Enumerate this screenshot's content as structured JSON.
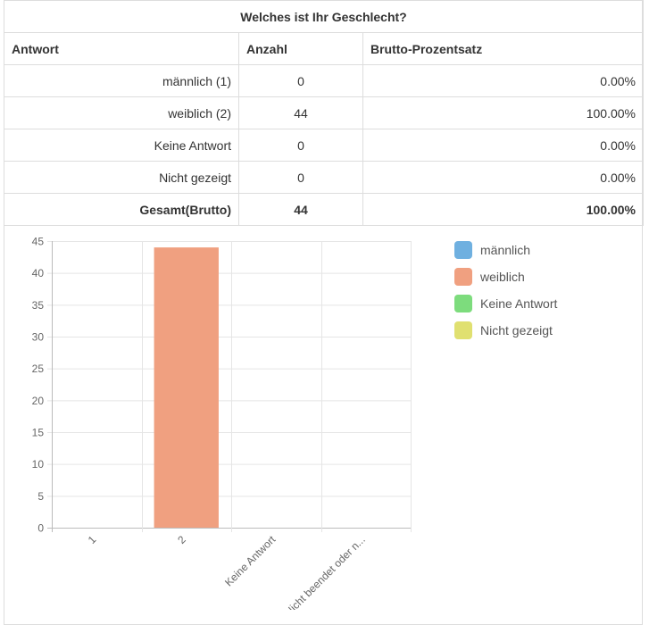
{
  "table": {
    "title": "Welches ist Ihr Geschlecht?",
    "headers": [
      "Antwort",
      "Anzahl",
      "Brutto-Prozentsatz"
    ],
    "rows": [
      {
        "answer": "männlich (1)",
        "count": "0",
        "percent": "0.00%"
      },
      {
        "answer": "weiblich (2)",
        "count": "44",
        "percent": "100.00%"
      },
      {
        "answer": "Keine Antwort",
        "count": "0",
        "percent": "0.00%"
      },
      {
        "answer": "Nicht gezeigt",
        "count": "0",
        "percent": "0.00%"
      }
    ],
    "total": {
      "answer": "Gesamt(Brutto)",
      "count": "44",
      "percent": "100.00%"
    }
  },
  "chart_data": {
    "type": "bar",
    "categories": [
      "1",
      "2",
      "Keine Antwort",
      "Nicht beendet oder n..."
    ],
    "values": [
      0,
      44,
      0,
      0
    ],
    "colors": [
      "#6fb0e0",
      "#f0a080",
      "#7ddc7d",
      "#e0e070"
    ],
    "ylim": [
      0,
      45
    ],
    "yticks": [
      0,
      5,
      10,
      15,
      20,
      25,
      30,
      35,
      40,
      45
    ],
    "grid": true,
    "legend_position": "right",
    "legend": [
      {
        "label": "männlich",
        "color": "#6fb0e0"
      },
      {
        "label": "weiblich",
        "color": "#f0a080"
      },
      {
        "label": "Keine Antwort",
        "color": "#7ddc7d"
      },
      {
        "label": "Nicht gezeigt",
        "color": "#e0e070"
      }
    ]
  }
}
